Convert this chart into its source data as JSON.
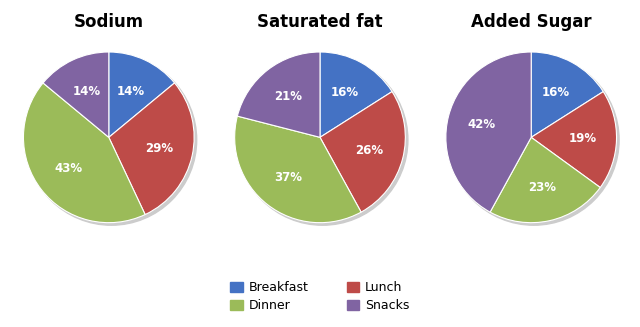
{
  "charts": [
    {
      "title": "Sodium",
      "values": [
        14,
        29,
        43,
        14
      ],
      "labels": [
        "14%",
        "29%",
        "43%",
        "14%"
      ],
      "order": [
        "Breakfast",
        "Lunch",
        "Dinner",
        "Snacks"
      ],
      "startangle": 90
    },
    {
      "title": "Saturated fat",
      "values": [
        16,
        26,
        37,
        21
      ],
      "labels": [
        "16%",
        "26%",
        "37%",
        "21%"
      ],
      "order": [
        "Breakfast",
        "Lunch",
        "Dinner",
        "Snacks"
      ],
      "startangle": 90
    },
    {
      "title": "Added Sugar",
      "values": [
        16,
        19,
        23,
        42
      ],
      "labels": [
        "16%",
        "19%",
        "23%",
        "42%"
      ],
      "order": [
        "Breakfast",
        "Lunch",
        "Dinner",
        "Snacks"
      ],
      "startangle": 90
    }
  ],
  "colors": {
    "Breakfast": "#4472C4",
    "Lunch": "#BE4B48",
    "Dinner": "#9BBB59",
    "Snacks": "#8064A2"
  },
  "legend_order": [
    "Breakfast",
    "Dinner",
    "Lunch",
    "Snacks"
  ],
  "background_color": "#FFFFFF",
  "title_fontsize": 12,
  "label_fontsize": 8.5,
  "legend_fontsize": 9
}
